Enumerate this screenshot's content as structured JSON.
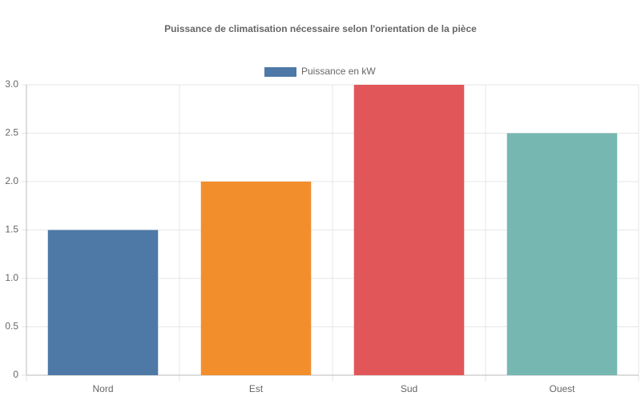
{
  "chart_data": {
    "type": "bar",
    "title": "Puissance de climatisation nécessaire selon l'orientation de la pièce",
    "categories": [
      "Nord",
      "Est",
      "Sud",
      "Ouest"
    ],
    "series": [
      {
        "name": "Puissance en kW",
        "color": "#4e79a7",
        "colors": [
          "#4e79a7",
          "#f28e2b",
          "#e15759",
          "#76b7b2"
        ],
        "values": [
          1.5,
          2,
          3,
          2.5
        ]
      }
    ],
    "ylim": [
      0,
      3
    ],
    "yticks": [
      0,
      0.5,
      {
        "value": 1,
        "label": "1.0"
      },
      1.5,
      {
        "value": 2,
        "label": "2.0"
      },
      2.5,
      {
        "value": 3,
        "label": "3.0"
      }
    ],
    "grid": true,
    "legend": "top"
  }
}
